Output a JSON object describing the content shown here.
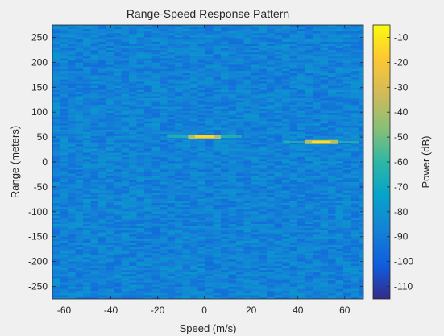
{
  "chart_data": {
    "type": "heatmap",
    "title": "Range-Speed Response Pattern",
    "xlabel": "Speed (m/s)",
    "ylabel": "Range (meters)",
    "xlim": [
      -65,
      68
    ],
    "ylim": [
      -275,
      275
    ],
    "xticks": [
      -60,
      -40,
      -20,
      0,
      20,
      40,
      60
    ],
    "yticks": [
      -250,
      -200,
      -150,
      -100,
      -50,
      0,
      50,
      100,
      150,
      200,
      250
    ],
    "colorbar": {
      "label": "Power (dB)",
      "limits": [
        -115,
        -5
      ],
      "ticks": [
        -10,
        -20,
        -30,
        -40,
        -50,
        -60,
        -70,
        -80,
        -90,
        -100,
        -110
      ],
      "colormap": "parula"
    },
    "background_level_db": -87,
    "targets": [
      {
        "speed": 0,
        "range": 51,
        "power_db": -15
      },
      {
        "speed": 50,
        "range": 40,
        "power_db": -12
      }
    ],
    "grid": false,
    "colors": {
      "figure_bg": "#f0f0f0",
      "axis_bg": "#3a72ec"
    }
  }
}
